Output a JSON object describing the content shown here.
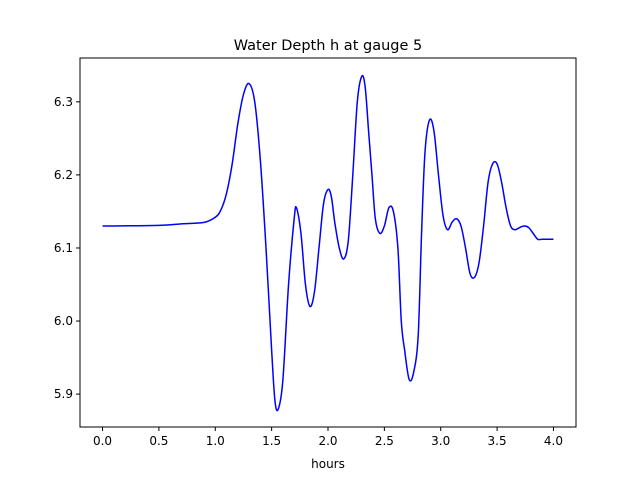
{
  "chart_data": {
    "type": "line",
    "title": "Water Depth h at gauge 5",
    "xlabel": "hours",
    "ylabel": "",
    "xlim": [
      -0.2,
      4.2
    ],
    "ylim": [
      5.855,
      6.36
    ],
    "xticks": [
      0.0,
      0.5,
      1.0,
      1.5,
      2.0,
      2.5,
      3.0,
      3.5,
      4.0
    ],
    "xtick_labels": [
      "0.0",
      "0.5",
      "1.0",
      "1.5",
      "2.0",
      "2.5",
      "3.0",
      "3.5",
      "4.0"
    ],
    "yticks": [
      5.9,
      6.0,
      6.1,
      6.2,
      6.3
    ],
    "ytick_labels": [
      "5.9",
      "6.0",
      "6.1",
      "6.2",
      "6.3"
    ],
    "grid": false,
    "series": [
      {
        "color": "#0000ff",
        "x": [
          0.0,
          0.5,
          0.7,
          0.9,
          1.0,
          1.05,
          1.1,
          1.15,
          1.2,
          1.25,
          1.3,
          1.35,
          1.4,
          1.45,
          1.5,
          1.53,
          1.56,
          1.6,
          1.65,
          1.7,
          1.72,
          1.76,
          1.8,
          1.84,
          1.88,
          1.92,
          1.96,
          2.0,
          2.03,
          2.06,
          2.1,
          2.14,
          2.18,
          2.22,
          2.26,
          2.3,
          2.33,
          2.36,
          2.39,
          2.42,
          2.46,
          2.5,
          2.54,
          2.58,
          2.62,
          2.65,
          2.68,
          2.72,
          2.76,
          2.8,
          2.83,
          2.86,
          2.9,
          2.94,
          2.98,
          3.02,
          3.06,
          3.1,
          3.14,
          3.18,
          3.22,
          3.26,
          3.3,
          3.34,
          3.38,
          3.42,
          3.46,
          3.5,
          3.54,
          3.58,
          3.62,
          3.66,
          3.7,
          3.74,
          3.78,
          3.82,
          3.86,
          3.9,
          3.94,
          3.97,
          4.0
        ],
        "y": [
          6.13,
          6.131,
          6.133,
          6.135,
          6.142,
          6.152,
          6.175,
          6.215,
          6.27,
          6.31,
          6.325,
          6.3,
          6.22,
          6.1,
          5.96,
          5.89,
          5.88,
          5.92,
          6.05,
          6.14,
          6.155,
          6.12,
          6.05,
          6.02,
          6.04,
          6.1,
          6.16,
          6.18,
          6.17,
          6.135,
          6.1,
          6.085,
          6.11,
          6.2,
          6.3,
          6.335,
          6.32,
          6.26,
          6.2,
          6.14,
          6.12,
          6.13,
          6.155,
          6.15,
          6.1,
          6.0,
          5.96,
          5.92,
          5.93,
          5.98,
          6.12,
          6.23,
          6.275,
          6.26,
          6.2,
          6.145,
          6.125,
          6.135,
          6.14,
          6.13,
          6.1,
          6.065,
          6.06,
          6.08,
          6.13,
          6.19,
          6.215,
          6.215,
          6.19,
          6.155,
          6.13,
          6.125,
          6.128,
          6.13,
          6.128,
          6.12,
          6.112,
          6.112,
          6.112,
          6.112,
          6.112
        ]
      }
    ]
  }
}
